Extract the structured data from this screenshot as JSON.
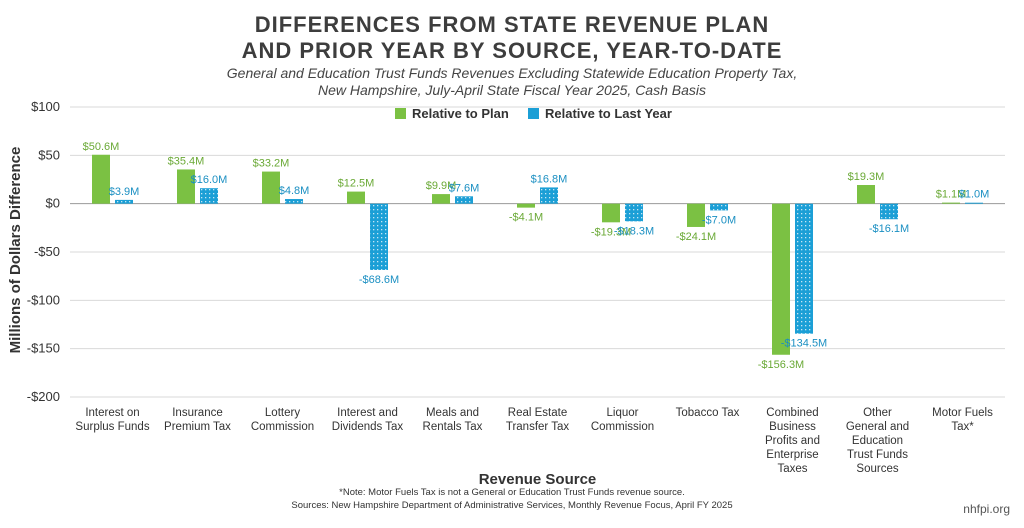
{
  "title_line1": "DIFFERENCES FROM STATE REVENUE PLAN",
  "title_line2": "AND PRIOR YEAR BY SOURCE, YEAR-TO-DATE",
  "subtitle_line1": "General and Education Trust Funds Revenues Excluding Statewide Education Property Tax,",
  "subtitle_line2": "New Hampshire, July-April State Fiscal Year 2025, Cash Basis",
  "note": "*Note: Motor Fuels Tax is not a General or Education Trust Funds revenue source.",
  "sources": "Sources: New Hampshire Department of Administrative Services, Monthly Revenue Focus, April FY 2025",
  "brand": "nhfpi.org",
  "colors": {
    "plan": "#7bc143",
    "last_year": "#1b9fd6",
    "grid": "#d9d9d9"
  },
  "chart_data": {
    "type": "bar",
    "title": "DIFFERENCES FROM STATE REVENUE PLAN AND PRIOR YEAR BY SOURCE, YEAR-TO-DATE",
    "xlabel": "Revenue Source",
    "ylabel": "Millions of Dollars Difference",
    "ylim": [
      -200,
      100
    ],
    "yticks": [
      100,
      50,
      0,
      -50,
      -100,
      -150,
      -200
    ],
    "ytick_labels": [
      "$100",
      "$50",
      "$0",
      "-$50",
      "-$100",
      "-$150",
      "-$200"
    ],
    "grid": true,
    "legend_position": "top",
    "categories": [
      [
        "Interest on",
        "Surplus Funds"
      ],
      [
        "Insurance",
        "Premium Tax"
      ],
      [
        "Lottery",
        "Commission"
      ],
      [
        "Interest and",
        "Dividends Tax"
      ],
      [
        "Meals and",
        "Rentals Tax"
      ],
      [
        "Real Estate",
        "Transfer Tax"
      ],
      [
        "Liquor",
        "Commission"
      ],
      [
        "Tobacco Tax"
      ],
      [
        "Combined",
        "Business",
        "Profits and",
        "Enterprise",
        "Taxes"
      ],
      [
        "Other",
        "General and",
        "Education",
        "Trust Funds",
        "Sources"
      ],
      [
        "Motor Fuels",
        "Tax*"
      ]
    ],
    "series": [
      {
        "name": "Relative to Plan",
        "values": [
          50.6,
          35.4,
          33.2,
          12.5,
          9.9,
          -4.1,
          -19.3,
          -24.1,
          -156.3,
          19.3,
          1.1
        ],
        "labels": [
          "$50.6M",
          "$35.4M",
          "$33.2M",
          "$12.5M",
          "$9.9M",
          "-$4.1M",
          "-$19.3M",
          "-$24.1M",
          "-$156.3M",
          "$19.3M",
          "$1.1M"
        ]
      },
      {
        "name": "Relative to Last Year",
        "values": [
          3.9,
          16.0,
          4.8,
          -68.6,
          7.6,
          16.8,
          -18.3,
          -7.0,
          -134.5,
          -16.1,
          1.0
        ],
        "labels": [
          "$3.9M",
          "$16.0M",
          "$4.8M",
          "-$68.6M",
          "$7.6M",
          "$16.8M",
          "-$18.3M",
          "-$7.0M",
          "-$134.5M",
          "-$16.1M",
          "$1.0M"
        ]
      }
    ]
  }
}
